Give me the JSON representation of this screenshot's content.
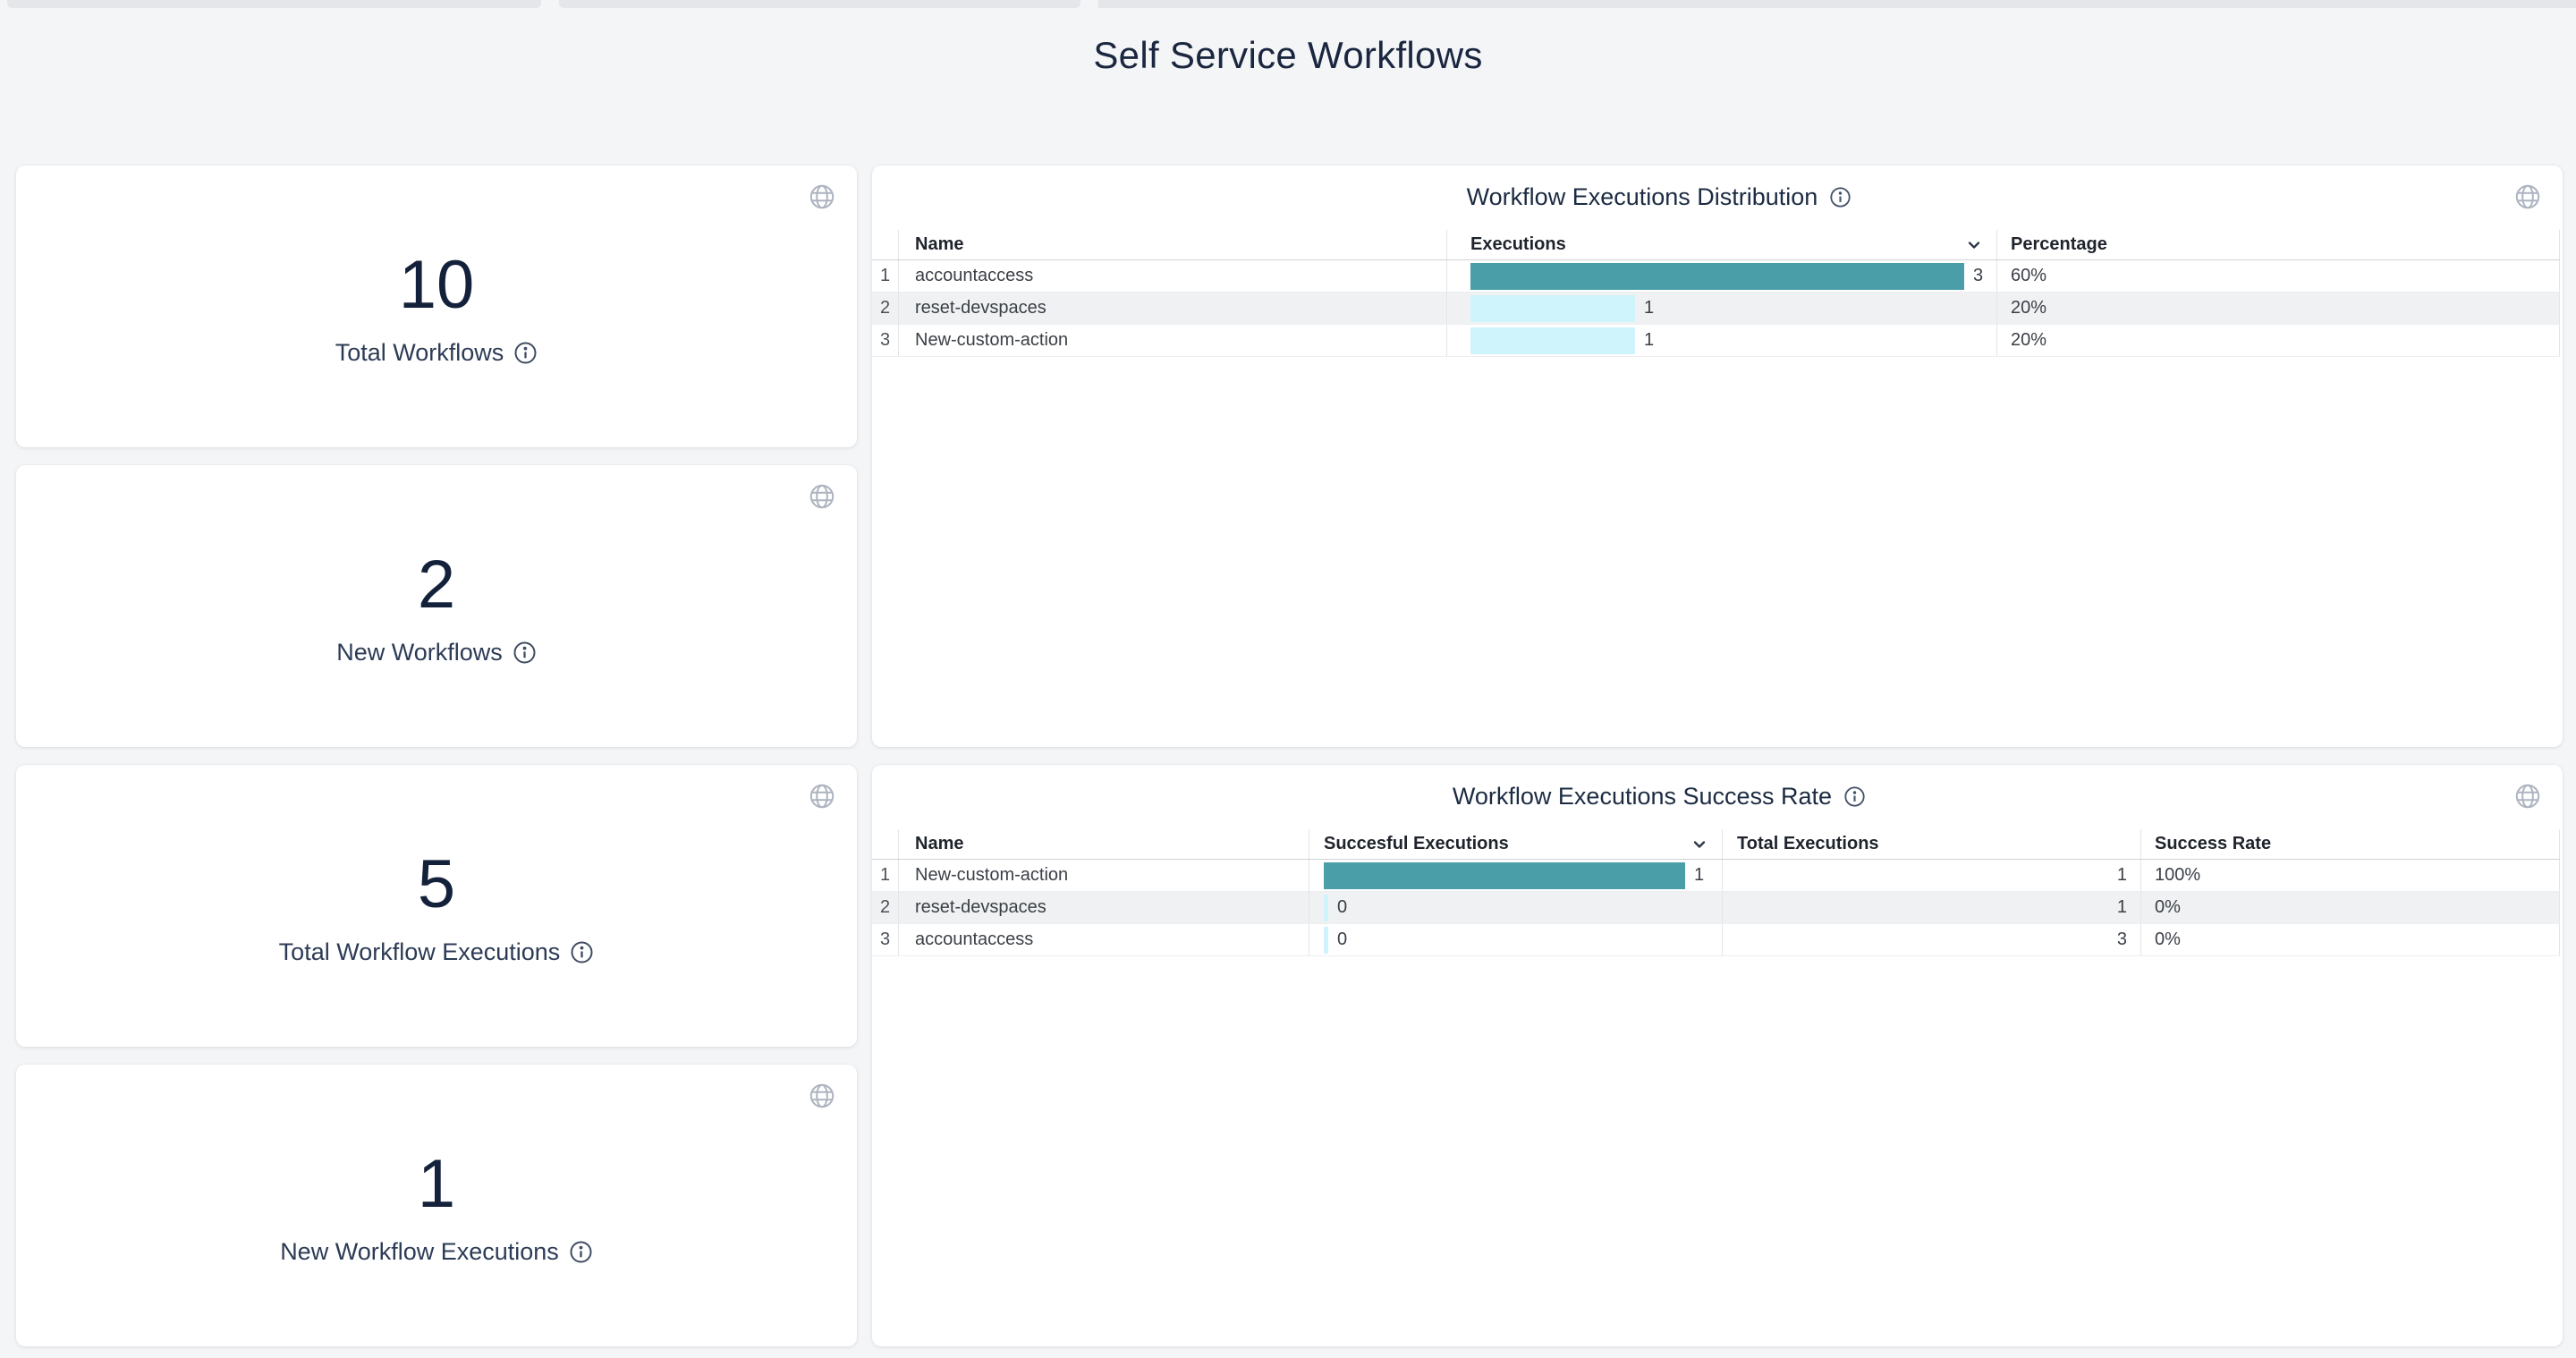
{
  "page": {
    "title": "Self Service Workflows"
  },
  "colors": {
    "bar_primary": "#4a9ea8",
    "bar_secondary": "#cff4fb",
    "page_bg": "#f4f5f7",
    "card_bg": "#ffffff",
    "heading_text": "#1b2740"
  },
  "icons": {
    "globe": "globe-icon",
    "info": "info-icon",
    "sort": "chevron-down-icon"
  },
  "stat_cards": [
    {
      "value": "10",
      "label": "Total Workflows"
    },
    {
      "value": "2",
      "label": "New Workflows"
    },
    {
      "value": "5",
      "label": "Total Workflow Executions"
    },
    {
      "value": "1",
      "label": "New Workflow Executions"
    }
  ],
  "tables": [
    {
      "title": "Workflow Executions Distribution",
      "headers": {
        "name": "Name",
        "executions": "Executions",
        "percentage": "Percentage"
      },
      "max_value": 3,
      "rows": [
        {
          "idx": "1",
          "name": "accountaccess",
          "value": 3,
          "percentage": "60%"
        },
        {
          "idx": "2",
          "name": "reset-devspaces",
          "value": 1,
          "percentage": "20%"
        },
        {
          "idx": "3",
          "name": "New-custom-action",
          "value": 1,
          "percentage": "20%"
        }
      ]
    },
    {
      "title": "Workflow Executions Success Rate",
      "headers": {
        "name": "Name",
        "successful": "Succesful Executions",
        "total": "Total Executions",
        "rate": "Success Rate"
      },
      "max_value": 1,
      "rows": [
        {
          "idx": "1",
          "name": "New-custom-action",
          "value": 1,
          "total": "1",
          "rate": "100%"
        },
        {
          "idx": "2",
          "name": "reset-devspaces",
          "value": 0,
          "total": "1",
          "rate": "0%"
        },
        {
          "idx": "3",
          "name": "accountaccess",
          "value": 0,
          "total": "3",
          "rate": "0%"
        }
      ]
    }
  ]
}
